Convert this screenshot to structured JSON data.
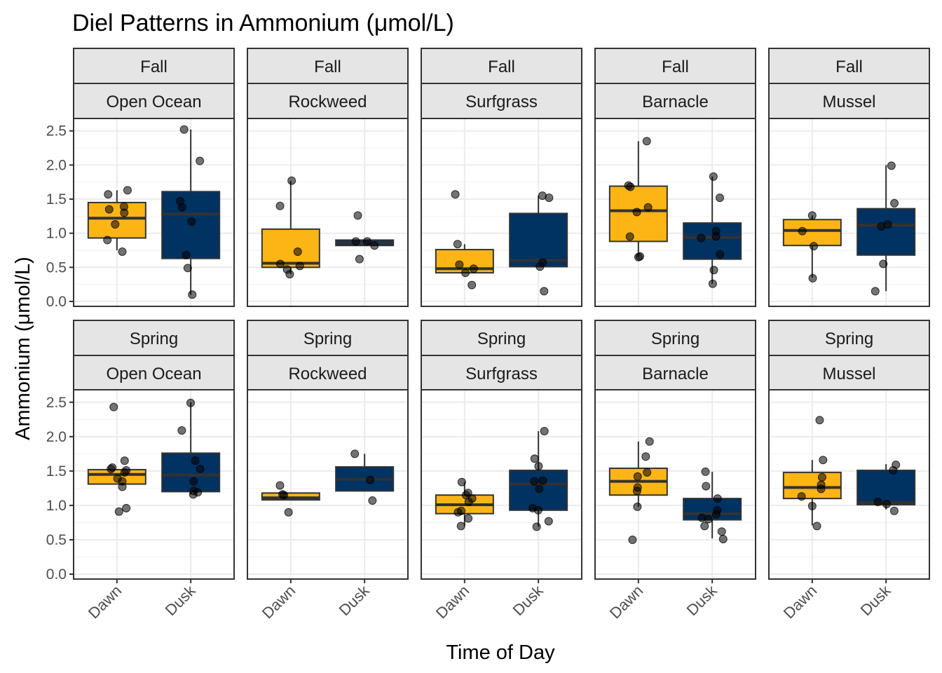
{
  "chart_data": {
    "type": "box",
    "title": "Diel Patterns in Ammonium (μmol/L)",
    "xlabel": "Time of Day",
    "ylabel": "Ammonium (μmol/L)",
    "ylim": [
      0,
      2.6
    ],
    "y_ticks": [
      "0.0",
      "0.5",
      "1.0",
      "1.5",
      "2.0",
      "2.5"
    ],
    "categories": [
      "Dawn",
      "Dusk"
    ],
    "colors": {
      "Dawn": "#FDB515",
      "Dusk": "#003262"
    },
    "grid": true,
    "facets": [
      {
        "season": "Fall",
        "site": "Open Ocean",
        "groups": [
          {
            "time": "Dawn",
            "box": {
              "q1": 0.93,
              "median": 1.22,
              "q3": 1.45,
              "whisker_low": 0.75,
              "whisker_high": 1.63
            },
            "points": [
              0.73,
              0.9,
              1.13,
              1.3,
              1.35,
              1.39,
              1.57,
              1.63
            ]
          },
          {
            "time": "Dusk",
            "box": {
              "q1": 0.63,
              "median": 1.28,
              "q3": 1.61,
              "whisker_low": 0.1,
              "whisker_high": 2.52
            },
            "points": [
              0.1,
              0.49,
              0.68,
              1.17,
              1.38,
              1.47,
              2.06,
              2.52
            ]
          }
        ]
      },
      {
        "season": "Fall",
        "site": "Rockweed",
        "groups": [
          {
            "time": "Dawn",
            "box": {
              "q1": 0.5,
              "median": 0.56,
              "q3": 1.06,
              "whisker_low": 0.4,
              "whisker_high": 1.77
            },
            "points": [
              0.4,
              0.47,
              0.52,
              0.55,
              0.73,
              1.4,
              1.77
            ]
          },
          {
            "time": "Dusk",
            "box": {
              "q1": 0.82,
              "median": 0.86,
              "q3": 0.9,
              "whisker_low": 0.82,
              "whisker_high": 0.9
            },
            "points": [
              0.62,
              0.82,
              0.88,
              0.88,
              1.26
            ]
          }
        ]
      },
      {
        "season": "Fall",
        "site": "Surfgrass",
        "groups": [
          {
            "time": "Dawn",
            "box": {
              "q1": 0.42,
              "median": 0.48,
              "q3": 0.76,
              "whisker_low": 0.42,
              "whisker_high": 0.84
            },
            "points": [
              0.24,
              0.42,
              0.48,
              0.54,
              0.84,
              1.57
            ]
          },
          {
            "time": "Dusk",
            "box": {
              "q1": 0.51,
              "median": 0.6,
              "q3": 1.29,
              "whisker_low": 0.51,
              "whisker_high": 1.55
            },
            "points": [
              0.15,
              0.51,
              0.57,
              1.52,
              1.55
            ]
          }
        ]
      },
      {
        "season": "Fall",
        "site": "Barnacle",
        "groups": [
          {
            "time": "Dawn",
            "box": {
              "q1": 0.88,
              "median": 1.33,
              "q3": 1.69,
              "whisker_low": 0.65,
              "whisker_high": 2.35
            },
            "points": [
              0.65,
              0.66,
              0.95,
              1.31,
              1.38,
              1.68,
              1.7,
              2.35
            ]
          },
          {
            "time": "Dusk",
            "box": {
              "q1": 0.62,
              "median": 0.94,
              "q3": 1.15,
              "whisker_low": 0.26,
              "whisker_high": 1.83
            },
            "points": [
              0.26,
              0.46,
              0.69,
              0.93,
              0.95,
              1.03,
              1.52,
              1.83
            ]
          }
        ]
      },
      {
        "season": "Fall",
        "site": "Mussel",
        "groups": [
          {
            "time": "Dawn",
            "box": {
              "q1": 0.82,
              "median": 1.04,
              "q3": 1.2,
              "whisker_low": 0.35,
              "whisker_high": 1.26
            },
            "points": [
              0.34,
              0.81,
              1.03,
              1.26
            ]
          },
          {
            "time": "Dusk",
            "box": {
              "q1": 0.68,
              "median": 1.12,
              "q3": 1.36,
              "whisker_low": 0.15,
              "whisker_high": 2.0
            },
            "points": [
              0.15,
              0.55,
              1.1,
              1.13,
              1.44,
              1.99
            ]
          }
        ]
      },
      {
        "season": "Spring",
        "site": "Open Ocean",
        "groups": [
          {
            "time": "Dawn",
            "box": {
              "q1": 1.31,
              "median": 1.45,
              "q3": 1.52,
              "whisker_low": 1.31,
              "whisker_high": 1.52
            },
            "points": [
              0.91,
              0.96,
              1.27,
              1.35,
              1.39,
              1.48,
              1.51,
              1.53,
              1.55,
              1.65,
              2.43
            ]
          },
          {
            "time": "Dusk",
            "box": {
              "q1": 1.2,
              "median": 1.44,
              "q3": 1.76,
              "whisker_low": 1.16,
              "whisker_high": 2.5
            },
            "points": [
              1.16,
              1.19,
              1.21,
              1.35,
              1.53,
              1.65,
              2.09,
              2.49
            ]
          }
        ]
      },
      {
        "season": "Spring",
        "site": "Rockweed",
        "groups": [
          {
            "time": "Dawn",
            "box": {
              "q1": 1.08,
              "median": 1.11,
              "q3": 1.18,
              "whisker_low": 1.08,
              "whisker_high": 1.18
            },
            "points": [
              0.9,
              1.15,
              1.16,
              1.29
            ]
          },
          {
            "time": "Dusk",
            "box": {
              "q1": 1.21,
              "median": 1.38,
              "q3": 1.56,
              "whisker_low": 1.21,
              "whisker_high": 1.75
            },
            "points": [
              1.07,
              1.37,
              1.75
            ]
          }
        ]
      },
      {
        "season": "Spring",
        "site": "Surfgrass",
        "groups": [
          {
            "time": "Dawn",
            "box": {
              "q1": 0.88,
              "median": 1.01,
              "q3": 1.15,
              "whisker_low": 0.7,
              "whisker_high": 1.34
            },
            "points": [
              0.7,
              0.81,
              0.9,
              0.92,
              1.05,
              1.1,
              1.15,
              1.18,
              1.34
            ]
          },
          {
            "time": "Dusk",
            "box": {
              "q1": 0.93,
              "median": 1.31,
              "q3": 1.51,
              "whisker_low": 0.69,
              "whisker_high": 2.08
            },
            "points": [
              0.69,
              0.77,
              0.93,
              0.96,
              1.24,
              1.35,
              1.36,
              1.57,
              1.68,
              2.08
            ]
          }
        ]
      },
      {
        "season": "Spring",
        "site": "Barnacle",
        "groups": [
          {
            "time": "Dawn",
            "box": {
              "q1": 1.15,
              "median": 1.35,
              "q3": 1.54,
              "whisker_low": 0.98,
              "whisker_high": 1.93
            },
            "points": [
              0.5,
              0.98,
              1.21,
              1.26,
              1.42,
              1.48,
              1.71,
              1.93
            ]
          },
          {
            "time": "Dusk",
            "box": {
              "q1": 0.79,
              "median": 0.88,
              "q3": 1.1,
              "whisker_low": 0.52,
              "whisker_high": 1.49
            },
            "points": [
              0.51,
              0.62,
              0.7,
              0.8,
              0.82,
              0.87,
              0.93,
              1.1,
              1.28,
              1.49
            ]
          }
        ]
      },
      {
        "season": "Spring",
        "site": "Mussel",
        "groups": [
          {
            "time": "Dawn",
            "box": {
              "q1": 1.1,
              "median": 1.26,
              "q3": 1.48,
              "whisker_low": 0.71,
              "whisker_high": 1.66
            },
            "points": [
              0.7,
              0.99,
              1.13,
              1.24,
              1.3,
              1.41,
              1.66,
              2.24
            ]
          },
          {
            "time": "Dusk",
            "box": {
              "q1": 1.01,
              "median": 1.04,
              "q3": 1.51,
              "whisker_low": 0.94,
              "whisker_high": 1.6
            },
            "points": [
              0.92,
              1.02,
              1.05,
              1.51,
              1.59
            ]
          }
        ]
      }
    ]
  }
}
